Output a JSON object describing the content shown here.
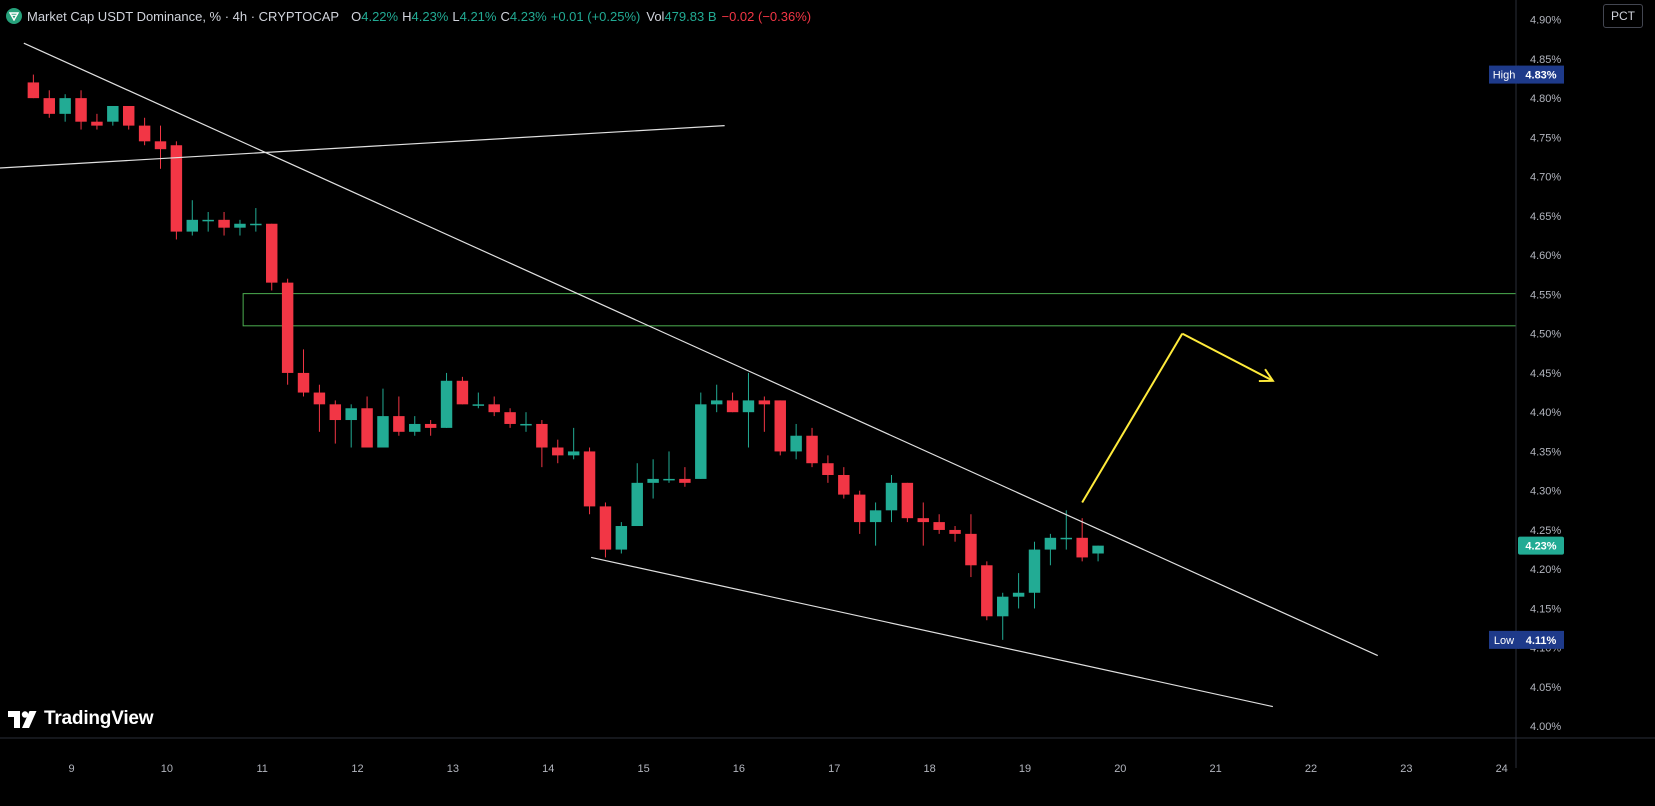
{
  "legend": {
    "title": "Market Cap USDT Dominance, % · 4h · CRYPTOCAP",
    "o_label": "O",
    "o_value": "4.22%",
    "h_label": "H",
    "h_value": "4.23%",
    "l_label": "L",
    "l_value": "4.21%",
    "c_label": "C",
    "c_value": "4.23%",
    "change": "+0.01 (+0.25%)",
    "vol_label": "Vol",
    "vol_value": "479.83 B",
    "vol_change": "−0.02 (−0.36%)"
  },
  "scale_button": "PCT",
  "branding": "TradingView",
  "colors": {
    "up": "#22ab94",
    "down": "#f23645",
    "trendline": "#e0e0e0",
    "zone": "#4caf50",
    "projection": "#ffeb3b",
    "badge_blue": "#1e3a8a",
    "background": "#000000"
  },
  "chart_data": {
    "type": "candlestick",
    "symbol": "Market Cap USDT Dominance, %",
    "interval": "4h",
    "x_ticks": [
      "9",
      "10",
      "11",
      "12",
      "13",
      "14",
      "15",
      "16",
      "17",
      "18",
      "19",
      "20",
      "21",
      "22",
      "23",
      "24"
    ],
    "y_ticks": [
      "4.00%",
      "4.05%",
      "4.10%",
      "4.15%",
      "4.20%",
      "4.25%",
      "4.30%",
      "4.35%",
      "4.40%",
      "4.45%",
      "4.50%",
      "4.55%",
      "4.60%",
      "4.65%",
      "4.70%",
      "4.75%",
      "4.80%",
      "4.85%",
      "4.90%"
    ],
    "ylim": [
      3.985,
      4.925
    ],
    "xlim_days": [
      8.25,
      24.15
    ],
    "candle_interval_days": 0.1667,
    "candles": [
      {
        "t": 8.6,
        "o": 4.82,
        "h": 4.83,
        "l": 4.8,
        "c": 4.8
      },
      {
        "t": 8.7667,
        "o": 4.8,
        "h": 4.81,
        "l": 4.775,
        "c": 4.78
      },
      {
        "t": 8.9333,
        "o": 4.78,
        "h": 4.805,
        "l": 4.77,
        "c": 4.8
      },
      {
        "t": 9.1,
        "o": 4.8,
        "h": 4.81,
        "l": 4.76,
        "c": 4.77
      },
      {
        "t": 9.2667,
        "o": 4.77,
        "h": 4.78,
        "l": 4.76,
        "c": 4.765
      },
      {
        "t": 9.4333,
        "o": 4.77,
        "h": 4.79,
        "l": 4.765,
        "c": 4.79
      },
      {
        "t": 9.6,
        "o": 4.79,
        "h": 4.79,
        "l": 4.76,
        "c": 4.765
      },
      {
        "t": 9.7667,
        "o": 4.765,
        "h": 4.775,
        "l": 4.74,
        "c": 4.745
      },
      {
        "t": 9.9333,
        "o": 4.745,
        "h": 4.765,
        "l": 4.71,
        "c": 4.735
      },
      {
        "t": 10.1,
        "o": 4.74,
        "h": 4.745,
        "l": 4.62,
        "c": 4.63
      },
      {
        "t": 10.2667,
        "o": 4.63,
        "h": 4.67,
        "l": 4.625,
        "c": 4.645
      },
      {
        "t": 10.4333,
        "o": 4.645,
        "h": 4.655,
        "l": 4.63,
        "c": 4.645
      },
      {
        "t": 10.6,
        "o": 4.645,
        "h": 4.655,
        "l": 4.625,
        "c": 4.635
      },
      {
        "t": 10.7667,
        "o": 4.635,
        "h": 4.645,
        "l": 4.625,
        "c": 4.64
      },
      {
        "t": 10.9333,
        "o": 4.64,
        "h": 4.66,
        "l": 4.63,
        "c": 4.64
      },
      {
        "t": 11.1,
        "o": 4.64,
        "h": 4.64,
        "l": 4.555,
        "c": 4.565
      },
      {
        "t": 11.2667,
        "o": 4.565,
        "h": 4.57,
        "l": 4.435,
        "c": 4.45
      },
      {
        "t": 11.4333,
        "o": 4.45,
        "h": 4.48,
        "l": 4.42,
        "c": 4.425
      },
      {
        "t": 11.6,
        "o": 4.425,
        "h": 4.435,
        "l": 4.375,
        "c": 4.41
      },
      {
        "t": 11.7667,
        "o": 4.41,
        "h": 4.415,
        "l": 4.36,
        "c": 4.39
      },
      {
        "t": 11.9333,
        "o": 4.39,
        "h": 4.41,
        "l": 4.355,
        "c": 4.405
      },
      {
        "t": 12.1,
        "o": 4.405,
        "h": 4.42,
        "l": 4.355,
        "c": 4.355
      },
      {
        "t": 12.2667,
        "o": 4.355,
        "h": 4.43,
        "l": 4.355,
        "c": 4.395
      },
      {
        "t": 12.4333,
        "o": 4.395,
        "h": 4.42,
        "l": 4.37,
        "c": 4.375
      },
      {
        "t": 12.6,
        "o": 4.375,
        "h": 4.395,
        "l": 4.37,
        "c": 4.385
      },
      {
        "t": 12.7667,
        "o": 4.385,
        "h": 4.39,
        "l": 4.37,
        "c": 4.38
      },
      {
        "t": 12.9333,
        "o": 4.38,
        "h": 4.45,
        "l": 4.38,
        "c": 4.44
      },
      {
        "t": 13.1,
        "o": 4.44,
        "h": 4.445,
        "l": 4.41,
        "c": 4.41
      },
      {
        "t": 13.2667,
        "o": 4.41,
        "h": 4.425,
        "l": 4.405,
        "c": 4.41
      },
      {
        "t": 13.4333,
        "o": 4.41,
        "h": 4.42,
        "l": 4.395,
        "c": 4.4
      },
      {
        "t": 13.6,
        "o": 4.4,
        "h": 4.405,
        "l": 4.38,
        "c": 4.385
      },
      {
        "t": 13.7667,
        "o": 4.385,
        "h": 4.4,
        "l": 4.375,
        "c": 4.385
      },
      {
        "t": 13.9333,
        "o": 4.385,
        "h": 4.39,
        "l": 4.33,
        "c": 4.355
      },
      {
        "t": 14.1,
        "o": 4.355,
        "h": 4.365,
        "l": 4.335,
        "c": 4.345
      },
      {
        "t": 14.2667,
        "o": 4.345,
        "h": 4.38,
        "l": 4.34,
        "c": 4.35
      },
      {
        "t": 14.4333,
        "o": 4.35,
        "h": 4.355,
        "l": 4.27,
        "c": 4.28
      },
      {
        "t": 14.6,
        "o": 4.28,
        "h": 4.285,
        "l": 4.215,
        "c": 4.225
      },
      {
        "t": 14.7667,
        "o": 4.225,
        "h": 4.26,
        "l": 4.22,
        "c": 4.255
      },
      {
        "t": 14.9333,
        "o": 4.255,
        "h": 4.335,
        "l": 4.255,
        "c": 4.31
      },
      {
        "t": 15.1,
        "o": 4.31,
        "h": 4.34,
        "l": 4.29,
        "c": 4.315
      },
      {
        "t": 15.2667,
        "o": 4.315,
        "h": 4.35,
        "l": 4.31,
        "c": 4.315
      },
      {
        "t": 15.4333,
        "o": 4.315,
        "h": 4.33,
        "l": 4.305,
        "c": 4.31
      },
      {
        "t": 15.6,
        "o": 4.315,
        "h": 4.425,
        "l": 4.315,
        "c": 4.41
      },
      {
        "t": 15.7667,
        "o": 4.41,
        "h": 4.435,
        "l": 4.4,
        "c": 4.415
      },
      {
        "t": 15.9333,
        "o": 4.415,
        "h": 4.425,
        "l": 4.4,
        "c": 4.4
      },
      {
        "t": 16.1,
        "o": 4.4,
        "h": 4.45,
        "l": 4.355,
        "c": 4.415
      },
      {
        "t": 16.2667,
        "o": 4.415,
        "h": 4.42,
        "l": 4.375,
        "c": 4.41
      },
      {
        "t": 16.4333,
        "o": 4.415,
        "h": 4.415,
        "l": 4.345,
        "c": 4.35
      },
      {
        "t": 16.6,
        "o": 4.35,
        "h": 4.385,
        "l": 4.34,
        "c": 4.37
      },
      {
        "t": 16.7667,
        "o": 4.37,
        "h": 4.38,
        "l": 4.33,
        "c": 4.335
      },
      {
        "t": 16.9333,
        "o": 4.335,
        "h": 4.345,
        "l": 4.31,
        "c": 4.32
      },
      {
        "t": 17.1,
        "o": 4.32,
        "h": 4.33,
        "l": 4.29,
        "c": 4.295
      },
      {
        "t": 17.2667,
        "o": 4.295,
        "h": 4.3,
        "l": 4.245,
        "c": 4.26
      },
      {
        "t": 17.4333,
        "o": 4.26,
        "h": 4.285,
        "l": 4.23,
        "c": 4.275
      },
      {
        "t": 17.6,
        "o": 4.275,
        "h": 4.32,
        "l": 4.26,
        "c": 4.31
      },
      {
        "t": 17.7667,
        "o": 4.31,
        "h": 4.31,
        "l": 4.26,
        "c": 4.265
      },
      {
        "t": 17.9333,
        "o": 4.265,
        "h": 4.285,
        "l": 4.23,
        "c": 4.26
      },
      {
        "t": 18.1,
        "o": 4.26,
        "h": 4.27,
        "l": 4.245,
        "c": 4.25
      },
      {
        "t": 18.2667,
        "o": 4.25,
        "h": 4.255,
        "l": 4.235,
        "c": 4.245
      },
      {
        "t": 18.4333,
        "o": 4.245,
        "h": 4.27,
        "l": 4.19,
        "c": 4.205
      },
      {
        "t": 18.6,
        "o": 4.205,
        "h": 4.21,
        "l": 4.135,
        "c": 4.14
      },
      {
        "t": 18.7667,
        "o": 4.14,
        "h": 4.17,
        "l": 4.11,
        "c": 4.165
      },
      {
        "t": 18.9333,
        "o": 4.165,
        "h": 4.195,
        "l": 4.15,
        "c": 4.17
      },
      {
        "t": 19.1,
        "o": 4.17,
        "h": 4.235,
        "l": 4.15,
        "c": 4.225
      },
      {
        "t": 19.2667,
        "o": 4.225,
        "h": 4.245,
        "l": 4.205,
        "c": 4.24
      },
      {
        "t": 19.4333,
        "o": 4.24,
        "h": 4.275,
        "l": 4.225,
        "c": 4.24
      },
      {
        "t": 19.6,
        "o": 4.24,
        "h": 4.265,
        "l": 4.21,
        "c": 4.215
      },
      {
        "t": 19.7667,
        "o": 4.22,
        "h": 4.23,
        "l": 4.21,
        "c": 4.23
      }
    ],
    "lines": [
      {
        "name": "descending-resistance-trendline",
        "kind": "trendline",
        "from": {
          "t": 8.5,
          "y": 4.87
        },
        "to": {
          "t": 22.7,
          "y": 4.09
        }
      },
      {
        "name": "rising-trendline",
        "kind": "trendline",
        "from": {
          "t": 8.1,
          "y": 4.71
        },
        "to": {
          "t": 15.85,
          "y": 4.765
        }
      },
      {
        "name": "lower-wedge-trendline",
        "kind": "trendline",
        "from": {
          "t": 14.45,
          "y": 4.215
        },
        "to": {
          "t": 21.6,
          "y": 4.025
        }
      },
      {
        "name": "projection-up",
        "kind": "projection",
        "from": {
          "t": 19.6,
          "y": 4.285
        },
        "to": {
          "t": 20.65,
          "y": 4.5
        }
      },
      {
        "name": "projection-down",
        "kind": "projection",
        "from": {
          "t": 20.65,
          "y": 4.5
        },
        "to": {
          "t": 21.6,
          "y": 4.44
        }
      }
    ],
    "zones": [
      {
        "name": "resistance-zone",
        "t_start": 10.8,
        "y_low": 4.51,
        "y_high": 4.551
      }
    ],
    "price_labels": [
      {
        "name": "high",
        "label": "High",
        "value": 4.83,
        "text": "4.83%"
      },
      {
        "name": "last",
        "label": "",
        "value": 4.23,
        "text": "4.23%"
      },
      {
        "name": "low",
        "label": "Low",
        "value": 4.11,
        "text": "4.11%"
      }
    ]
  }
}
